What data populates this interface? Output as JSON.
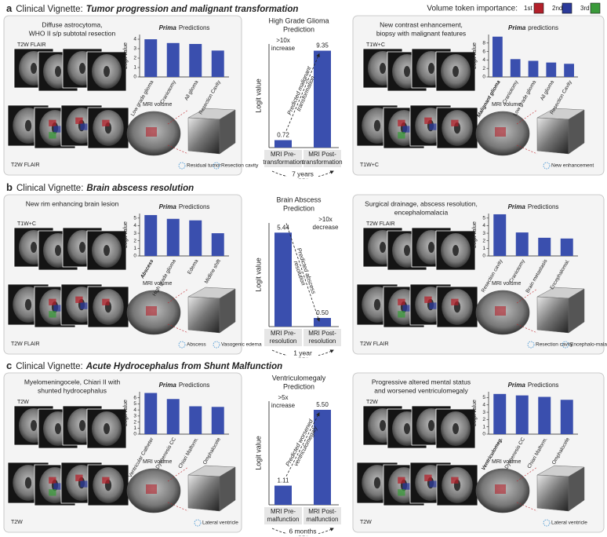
{
  "legend": {
    "title": "Volume token importance:",
    "items": [
      "1st",
      "2nd",
      "3rd"
    ],
    "colors": [
      "#b3202a",
      "#2b3a9a",
      "#3a9a3a"
    ]
  },
  "bar_color": "#3a4fae",
  "highlight_color": "#c0262d",
  "panels": [
    {
      "letter": "a",
      "prefix": "Clinical Vignette:",
      "title": "Tumor progression and malignant transformation",
      "left": {
        "caption": [
          "Diffuse astrocytoma,",
          "WHO II s/p subtotal resection"
        ],
        "image_labels": [
          "T2W FLAIR",
          "T2W FLAIR"
        ],
        "volume_label": "MRI volume",
        "volume_annotations": [
          "Residual tumor",
          "Resection cavity"
        ],
        "chart": {
          "type": "bar",
          "title_em": "Prima",
          "title": "Predictions",
          "ylabel": "Logit value",
          "categories": [
            "Low grade glioma",
            "Craniotomy",
            "All glioma",
            "Resection Cavity"
          ],
          "values": [
            4.0,
            3.6,
            3.5,
            2.8
          ],
          "ylim": [
            0,
            4.5
          ],
          "yticks": [
            0,
            1,
            2,
            3,
            4
          ]
        }
      },
      "center": {
        "type": "bar",
        "title": [
          "High Grade Glioma",
          "Prediction"
        ],
        "ylabel": "Logit value",
        "categories": [
          [
            "MRI Pre-",
            "transformation"
          ],
          [
            "MRI Post-",
            "transformation"
          ]
        ],
        "values": [
          0.72,
          9.35
        ],
        "value_labels": [
          "0.72",
          "9.35"
        ],
        "ylim": [
          0,
          10
        ],
        "change": [
          ">10x",
          "increase"
        ],
        "arrow_text": [
          "Predicted malignant",
          "transformation"
        ],
        "interval": "7 years"
      },
      "right": {
        "caption": [
          "New contrast enhancement,",
          "biopsy with malignant features"
        ],
        "image_labels": [
          "T1W+C",
          "T1W+C"
        ],
        "volume_label": "MRI volume",
        "volume_annotations": [
          "New enhancement"
        ],
        "chart": {
          "type": "bar",
          "title_em": "Prima",
          "title": "predictions",
          "ylabel": "Logit value",
          "categories": [
            "Malignant glioma",
            "Craniotomy",
            "Low grade glioma",
            "All glioma",
            "Resection Cavity"
          ],
          "values": [
            9.5,
            4.2,
            3.8,
            3.4,
            3.1
          ],
          "ylim": [
            0,
            10
          ],
          "yticks": [
            0,
            2,
            4,
            6,
            8
          ],
          "highlight": 0
        }
      }
    },
    {
      "letter": "b",
      "prefix": "Clinical Vignette:",
      "title": "Brain abscess resolution",
      "left": {
        "caption": [
          "New rim enhancing brain lesion"
        ],
        "image_labels": [
          "T1W+C",
          "T2W FLAIR"
        ],
        "volume_label": "MRI volume",
        "volume_annotations": [
          "Abscess",
          "Vasogenic edema"
        ],
        "chart": {
          "type": "bar",
          "title_em": "Prima",
          "title": "Predictions",
          "ylabel": "Logit value",
          "categories": [
            "Abscess",
            "High grade glioma",
            "Edema",
            "Midline shift"
          ],
          "values": [
            5.4,
            4.9,
            4.7,
            3.0
          ],
          "ylim": [
            0,
            5.6
          ],
          "yticks": [
            0,
            1,
            2,
            3,
            4,
            5
          ],
          "highlight": 0
        }
      },
      "center": {
        "type": "bar",
        "title": [
          "Brain Abscess",
          "Prediction"
        ],
        "ylabel": "Logit value",
        "categories": [
          [
            "MRI Pre-",
            "resolution"
          ],
          [
            "MRI Post-",
            "resolution"
          ]
        ],
        "values": [
          5.44,
          0.5
        ],
        "value_labels": [
          "5.44",
          "0.50"
        ],
        "ylim": [
          0,
          6
        ],
        "change": [
          ">10x",
          "decrease"
        ],
        "arrow_text": [
          "Predicted abscess",
          "resolution"
        ],
        "interval": "1 year"
      },
      "right": {
        "caption": [
          "Surgical drainage, abscess resolution,",
          "encephalomalacia"
        ],
        "image_labels": [
          "T2W FLAIR",
          "T2W FLAIR"
        ],
        "volume_label": "MRI volume",
        "volume_annotations": [
          "Resection cavity",
          "Encephalo-malacia"
        ],
        "chart": {
          "type": "bar",
          "title_em": "Prima",
          "title": "Predictions",
          "ylabel": "Logit value",
          "categories": [
            "Resection cavity",
            "Craniotomy",
            "Brain metastasis",
            "Encephalomal."
          ],
          "values": [
            5.5,
            3.1,
            2.4,
            2.3
          ],
          "ylim": [
            0,
            5.6
          ],
          "yticks": [
            0,
            1,
            2,
            3,
            4,
            5
          ]
        }
      }
    },
    {
      "letter": "c",
      "prefix": "Clinical Vignette:",
      "title": "Acute Hydrocephalus from Shunt Malfunction",
      "left": {
        "caption": [
          "Myelomeningocele, Chiari II with",
          "shunted hydrocephalus"
        ],
        "image_labels": [
          "T2W",
          "T2W"
        ],
        "volume_label": "MRI volume",
        "volume_annotations": [
          "Lateral ventricle"
        ],
        "chart": {
          "type": "bar",
          "title_em": "Prima",
          "title": "Predictions",
          "ylabel": "Logit value",
          "categories": [
            "Ventricular Catheter",
            "Dysgenesis CC",
            "Chiari Malform.",
            "Omphalocele"
          ],
          "values": [
            6.8,
            5.8,
            4.6,
            4.5
          ],
          "ylim": [
            0,
            7
          ],
          "yticks": [
            0,
            1,
            2,
            3,
            4,
            5,
            6
          ]
        }
      },
      "center": {
        "type": "bar",
        "title": [
          "Ventriculomegaly",
          "Prediction"
        ],
        "ylabel": "Logit value",
        "categories": [
          [
            "MRI Pre-",
            "malfunction"
          ],
          [
            "MRI Post-",
            "malfunction"
          ]
        ],
        "values": [
          1.11,
          5.5
        ],
        "value_labels": [
          "1.11",
          "5.50"
        ],
        "ylim": [
          0,
          6
        ],
        "change": [
          ">5x",
          "increase"
        ],
        "arrow_text": [
          "Predicted worsened",
          "ventriculomegaly"
        ],
        "interval": "6 months"
      },
      "right": {
        "caption": [
          "Progressive altered mental status",
          "and worsened ventriculomegaly"
        ],
        "image_labels": [
          "T2W",
          "T2W"
        ],
        "volume_label": "MRI volume",
        "volume_annotations": [
          "Lateral ventricle"
        ],
        "chart": {
          "type": "bar",
          "title_em": "Prima",
          "title": "Predictions",
          "ylabel": "Logit value",
          "categories": [
            "Ventriculomeg.",
            "Dysgenesis CC",
            "Chiari Malform.",
            "Omphalocele"
          ],
          "values": [
            5.5,
            5.3,
            5.1,
            4.7
          ],
          "ylim": [
            0,
            5.8
          ],
          "yticks": [
            0,
            1,
            2,
            3,
            4,
            5
          ],
          "highlight": 0
        }
      }
    }
  ]
}
